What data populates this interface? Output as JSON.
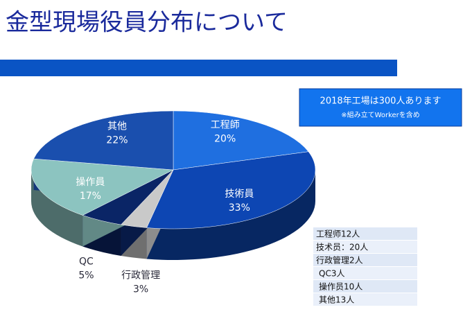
{
  "slide_title": "金型現場役員分布について",
  "note": {
    "headline": "2018年工場は300人あります",
    "sub": "※組み立てWorkerを含め"
  },
  "table": [
    "工程师12人",
    "技术员：20人",
    "行政管理2人",
    "QC3人",
    "操作员10人",
    "其他13人"
  ],
  "chart_data": {
    "type": "pie",
    "categories": [
      "工程師",
      "技術員",
      "行政管理",
      "QC",
      "操作員",
      "其他"
    ],
    "values": [
      20,
      33,
      3,
      5,
      17,
      22
    ],
    "value_labels": [
      "20%",
      "33%",
      "3%",
      "5%",
      "17%",
      "22%"
    ],
    "colors": [
      "#1f6fe0",
      "#0d46b3",
      "#c9c9c9",
      "#0a2566",
      "#8cc4c0",
      "#1a4fae"
    ]
  }
}
